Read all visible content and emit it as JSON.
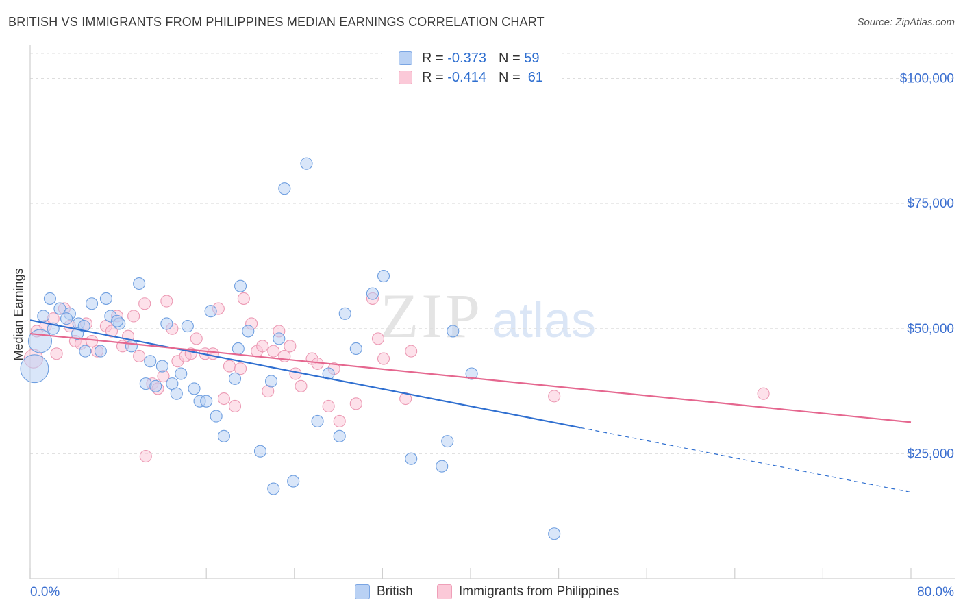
{
  "title": "BRITISH VS IMMIGRANTS FROM PHILIPPINES MEDIAN EARNINGS CORRELATION CHART",
  "source": "Source: ZipAtlas.com",
  "watermark": {
    "zip": "ZIP",
    "atlas": "atlas"
  },
  "legend": {
    "r_label": "R =",
    "n_label": "N =",
    "british": {
      "r": "-0.373",
      "n": "59"
    },
    "philippines": {
      "r": "-0.414",
      "n": "61"
    }
  },
  "colors": {
    "british_fill": "#b9d1f4",
    "british_stroke": "#6f9fe0",
    "british_line": "#2f6fd0",
    "philippines_fill": "#fbc9d8",
    "philippines_stroke": "#ec9ab4",
    "philippines_line": "#e5678f",
    "axis_text": "#3b6fd0",
    "grid": "#dddddd"
  },
  "chart_data": {
    "type": "scatter",
    "title": "BRITISH VS IMMIGRANTS FROM PHILIPPINES MEDIAN EARNINGS CORRELATION CHART",
    "xlabel": "",
    "ylabel": "Median Earnings",
    "xlim": [
      0,
      80
    ],
    "ylim": [
      0,
      105000
    ],
    "x_tick_labels": [
      "0.0%",
      "80.0%"
    ],
    "y_ticks": [
      25000,
      50000,
      75000,
      100000
    ],
    "y_tick_labels": [
      "$25,000",
      "$50,000",
      "$75,000",
      "$100,000"
    ],
    "grid": true,
    "legend_position": "top-center",
    "series": [
      {
        "name": "British",
        "trend": {
          "x0": 0,
          "y0": 51700,
          "x1": 50,
          "y1": 30200,
          "x_dash_end": 80,
          "y_dash_end": 17300
        },
        "points": [
          [
            1.2,
            52500
          ],
          [
            1.8,
            56000
          ],
          [
            2.7,
            54000
          ],
          [
            3.6,
            53000
          ],
          [
            4.4,
            51000
          ],
          [
            3.3,
            52000
          ],
          [
            5.6,
            55000
          ],
          [
            4.3,
            49000
          ],
          [
            5.0,
            45500
          ],
          [
            6.4,
            45500
          ],
          [
            6.9,
            56000
          ],
          [
            7.3,
            52500
          ],
          [
            8.1,
            51000
          ],
          [
            9.2,
            46500
          ],
          [
            9.9,
            59000
          ],
          [
            10.5,
            39000
          ],
          [
            10.9,
            43500
          ],
          [
            11.4,
            38500
          ],
          [
            12.0,
            42500
          ],
          [
            12.4,
            51000
          ],
          [
            12.9,
            39000
          ],
          [
            13.3,
            37000
          ],
          [
            13.7,
            41000
          ],
          [
            14.3,
            50500
          ],
          [
            14.9,
            38000
          ],
          [
            15.4,
            35500
          ],
          [
            16.0,
            35500
          ],
          [
            16.4,
            53500
          ],
          [
            16.9,
            32500
          ],
          [
            17.6,
            28500
          ],
          [
            18.6,
            40000
          ],
          [
            18.9,
            46000
          ],
          [
            19.1,
            58500
          ],
          [
            19.8,
            49500
          ],
          [
            20.9,
            25500
          ],
          [
            21.9,
            39500
          ],
          [
            22.1,
            18000
          ],
          [
            22.6,
            48000
          ],
          [
            23.1,
            78000
          ],
          [
            23.9,
            19500
          ],
          [
            25.1,
            83000
          ],
          [
            26.1,
            31500
          ],
          [
            27.1,
            41000
          ],
          [
            28.1,
            28500
          ],
          [
            28.6,
            53000
          ],
          [
            29.6,
            46000
          ],
          [
            31.1,
            57000
          ],
          [
            32.1,
            60500
          ],
          [
            34.6,
            24000
          ],
          [
            37.4,
            22500
          ],
          [
            37.9,
            27500
          ],
          [
            38.4,
            49500
          ],
          [
            40.1,
            41000
          ],
          [
            47.6,
            9000
          ],
          [
            0.9,
            47500
          ],
          [
            0.4,
            42000
          ],
          [
            2.1,
            50000
          ],
          [
            7.9,
            51500
          ],
          [
            4.9,
            50500
          ]
        ],
        "sizes": [
          1,
          1,
          1,
          1,
          1,
          1,
          1,
          1,
          1,
          1,
          1,
          1,
          1,
          1,
          1,
          1,
          1,
          1,
          1,
          1,
          1,
          1,
          1,
          1,
          1,
          1,
          1,
          1,
          1,
          1,
          1,
          1,
          1,
          1,
          1,
          1,
          1,
          1,
          1,
          1,
          1,
          1,
          1,
          1,
          1,
          1,
          1,
          1,
          1,
          1,
          1,
          1,
          1,
          1,
          2,
          2.4,
          1,
          1,
          1
        ]
      },
      {
        "name": "Immigrants from Philippines",
        "trend": {
          "x0": 0,
          "y0": 49000,
          "x1": 80,
          "y1": 31300
        },
        "points": [
          [
            0.6,
            49500
          ],
          [
            1.4,
            50500
          ],
          [
            2.1,
            52000
          ],
          [
            2.4,
            45000
          ],
          [
            3.1,
            54000
          ],
          [
            3.6,
            50500
          ],
          [
            4.1,
            47500
          ],
          [
            4.6,
            47000
          ],
          [
            5.1,
            51000
          ],
          [
            5.6,
            47500
          ],
          [
            6.1,
            45500
          ],
          [
            6.9,
            50500
          ],
          [
            7.4,
            49500
          ],
          [
            7.9,
            52500
          ],
          [
            8.4,
            46500
          ],
          [
            8.9,
            48500
          ],
          [
            9.4,
            52500
          ],
          [
            9.9,
            44500
          ],
          [
            10.4,
            55000
          ],
          [
            11.1,
            39000
          ],
          [
            11.6,
            38000
          ],
          [
            12.1,
            40500
          ],
          [
            12.4,
            55500
          ],
          [
            12.9,
            50000
          ],
          [
            13.4,
            43500
          ],
          [
            14.1,
            44500
          ],
          [
            14.6,
            45000
          ],
          [
            15.1,
            48000
          ],
          [
            15.9,
            45000
          ],
          [
            16.6,
            45000
          ],
          [
            17.1,
            54000
          ],
          [
            17.6,
            36000
          ],
          [
            18.1,
            42500
          ],
          [
            18.6,
            34500
          ],
          [
            19.1,
            42000
          ],
          [
            19.4,
            56000
          ],
          [
            20.1,
            51000
          ],
          [
            20.6,
            45500
          ],
          [
            21.1,
            46500
          ],
          [
            21.6,
            37500
          ],
          [
            22.1,
            45500
          ],
          [
            22.6,
            49500
          ],
          [
            23.1,
            44500
          ],
          [
            23.6,
            46500
          ],
          [
            24.1,
            41000
          ],
          [
            24.6,
            38500
          ],
          [
            25.6,
            44000
          ],
          [
            26.1,
            43000
          ],
          [
            27.1,
            34500
          ],
          [
            27.6,
            42000
          ],
          [
            28.1,
            31500
          ],
          [
            29.6,
            35000
          ],
          [
            31.1,
            56000
          ],
          [
            31.6,
            48000
          ],
          [
            32.1,
            44000
          ],
          [
            34.1,
            36000
          ],
          [
            34.6,
            45500
          ],
          [
            47.6,
            36500
          ],
          [
            66.6,
            37000
          ],
          [
            10.5,
            24500
          ],
          [
            0.3,
            44000
          ]
        ],
        "sizes": [
          1,
          1,
          1,
          1,
          1,
          1,
          1,
          1,
          1,
          1,
          1,
          1,
          1,
          1,
          1,
          1,
          1,
          1,
          1,
          1,
          1,
          1,
          1,
          1,
          1,
          1,
          1,
          1,
          1,
          1,
          1,
          1,
          1,
          1,
          1,
          1,
          1,
          1,
          1,
          1,
          1,
          1,
          1,
          1,
          1,
          1,
          1,
          1,
          1,
          1,
          1,
          1,
          1,
          1,
          1,
          1,
          1,
          1,
          1,
          1,
          1.6
        ]
      }
    ]
  }
}
